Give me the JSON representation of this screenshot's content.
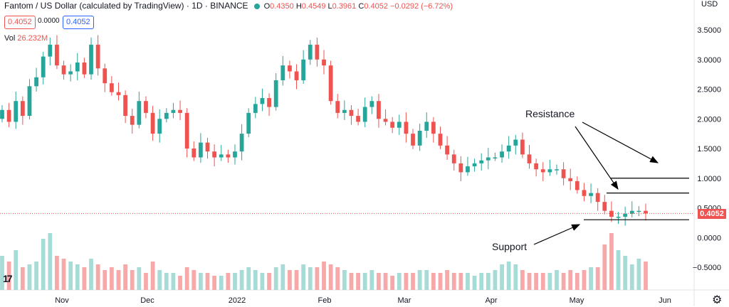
{
  "header": {
    "symbol_title": "Fantom / US Dollar (calculated by TradingView) · 1D · BINANCE",
    "ohlc": {
      "o_label": "O",
      "o": "0.4350",
      "h_label": "H",
      "h": "0.4549",
      "l_label": "L",
      "l": "0.3961",
      "c_label": "C",
      "c": "0.4052",
      "change": "−0.0292 (−6.72%)"
    },
    "sell_box": "0.4052",
    "spread": "0.0000",
    "buy_box": "0.4052",
    "volume_label": "Vol",
    "volume_value": "26.232M",
    "currency": "USD"
  },
  "annotations": {
    "resistance": "Resistance",
    "support": "Support"
  },
  "price_tag": "0.4052",
  "colors": {
    "up": "#26a69a",
    "down": "#ef5350",
    "vol_up": "#a7dcd6",
    "vol_down": "#f6a9a8"
  },
  "icons": {
    "logo": "tradingview-logo-icon",
    "settings": "gear-icon",
    "status": "green-dot-icon"
  },
  "chart_data": {
    "type": "candlestick",
    "y_axis_ticks": [
      "3.5000",
      "3.0000",
      "2.5000",
      "2.0000",
      "1.5000",
      "1.0000",
      "0.5000",
      "0.0000",
      "−0.5000"
    ],
    "ylim": [
      -0.75,
      3.75
    ],
    "x_axis_ticks": [
      "Nov",
      "Dec",
      "2022",
      "Feb",
      "Mar",
      "Apr",
      "May",
      "Jun"
    ],
    "series": [
      {
        "name": "Fantom / US Dollar",
        "closes": [
          2.15,
          1.95,
          2.3,
          2.05,
          2.55,
          2.7,
          3.05,
          3.25,
          2.9,
          2.75,
          2.8,
          2.95,
          2.75,
          3.25,
          2.85,
          2.6,
          2.45,
          2.4,
          2.05,
          1.9,
          2.3,
          2.1,
          1.75,
          2.0,
          2.1,
          2.15,
          2.1,
          1.5,
          1.35,
          1.6,
          1.45,
          1.35,
          1.4,
          1.35,
          1.45,
          1.75,
          2.1,
          2.25,
          2.35,
          2.2,
          2.65,
          2.9,
          2.8,
          2.65,
          3.0,
          3.25,
          3.0,
          2.9,
          2.3,
          2.1,
          2.15,
          2.05,
          1.95,
          2.2,
          2.3,
          2.0,
          1.95,
          1.85,
          1.95,
          1.75,
          1.55,
          1.8,
          1.95,
          1.75,
          1.55,
          1.4,
          1.25,
          1.1,
          1.2,
          1.25,
          1.3,
          1.35,
          1.35,
          1.45,
          1.55,
          1.65,
          1.4,
          1.25,
          1.15,
          1.1,
          1.15,
          1.15,
          1.0,
          0.95,
          0.8,
          0.7,
          0.75,
          0.6,
          0.45,
          0.35,
          0.35,
          0.4,
          0.45,
          0.45,
          0.4052
        ]
      },
      {
        "name": "Volume",
        "values": [
          0.6,
          0.5,
          0.7,
          0.4,
          0.45,
          0.5,
          0.9,
          1.0,
          0.6,
          0.55,
          0.5,
          0.45,
          0.4,
          0.55,
          0.45,
          0.35,
          0.4,
          0.35,
          0.45,
          0.35,
          0.4,
          0.3,
          0.5,
          0.35,
          0.3,
          0.3,
          0.25,
          0.4,
          0.35,
          0.3,
          0.3,
          0.25,
          0.25,
          0.3,
          0.3,
          0.35,
          0.4,
          0.35,
          0.3,
          0.3,
          0.4,
          0.45,
          0.35,
          0.35,
          0.45,
          0.4,
          0.4,
          0.5,
          0.45,
          0.4,
          0.35,
          0.3,
          0.3,
          0.3,
          0.35,
          0.3,
          0.3,
          0.25,
          0.3,
          0.3,
          0.3,
          0.35,
          0.35,
          0.3,
          0.3,
          0.35,
          0.3,
          0.3,
          0.3,
          0.25,
          0.3,
          0.3,
          0.35,
          0.45,
          0.5,
          0.45,
          0.35,
          0.3,
          0.3,
          0.3,
          0.3,
          0.35,
          0.3,
          0.35,
          0.3,
          0.35,
          0.4,
          0.4,
          0.8,
          1.0,
          0.7,
          0.6,
          0.45,
          0.55,
          0.5
        ]
      }
    ],
    "resistance_levels": [
      1.0,
      0.75
    ],
    "support_level": 0.3,
    "last_price": 0.4052
  }
}
